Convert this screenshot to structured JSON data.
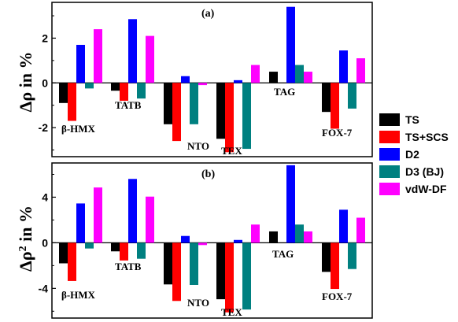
{
  "chart_data": {
    "type": "bar",
    "legend": {
      "position": "right"
    },
    "series_style": [
      {
        "name": "TS",
        "color": "#000000"
      },
      {
        "name": "TS+SCS",
        "color": "#ff0000"
      },
      {
        "name": "D2",
        "color": "#0000ff"
      },
      {
        "name": "D3 (BJ)",
        "color": "#008080"
      },
      {
        "name": "vdW-DF",
        "color": "#ff00ff"
      }
    ],
    "panels": [
      {
        "panel_label": "(a)",
        "ylabel": "Δρ in %",
        "ylim": [
          -3.3,
          3.6
        ],
        "yticks": [
          -2,
          0,
          2
        ],
        "categories": [
          "β-HMX",
          "TATB",
          "NTO",
          "TEX",
          "TAG",
          "FOX-7"
        ],
        "series": [
          {
            "name": "TS",
            "values": [
              -0.9,
              -0.35,
              -1.85,
              -2.5,
              0.5,
              -1.3
            ]
          },
          {
            "name": "TS+SCS",
            "values": [
              -1.7,
              -0.8,
              -2.6,
              -3.1,
              0.0,
              -2.05
            ]
          },
          {
            "name": "D2",
            "values": [
              1.7,
              2.85,
              0.3,
              0.12,
              3.4,
              1.45
            ]
          },
          {
            "name": "D3 (BJ)",
            "values": [
              -0.25,
              -0.7,
              -1.85,
              -2.95,
              0.8,
              -1.15
            ]
          },
          {
            "name": "vdW-DF",
            "values": [
              2.4,
              2.1,
              -0.1,
              0.8,
              0.5,
              1.1
            ]
          }
        ]
      },
      {
        "panel_label": "(b)",
        "ylabel": "Δρ² in %",
        "ylim": [
          -6.6,
          7.0
        ],
        "yticks": [
          -4,
          0,
          4
        ],
        "categories": [
          "β-HMX",
          "TATB",
          "NTO",
          "TEX",
          "TAG",
          "FOX-7"
        ],
        "series": [
          {
            "name": "TS",
            "values": [
              -1.8,
              -0.75,
              -3.65,
              -4.95,
              1.0,
              -2.55
            ]
          },
          {
            "name": "TS+SCS",
            "values": [
              -3.35,
              -1.55,
              -5.1,
              -6.1,
              0.0,
              -4.05
            ]
          },
          {
            "name": "D2",
            "values": [
              3.45,
              5.6,
              0.6,
              0.25,
              6.8,
              2.9
            ]
          },
          {
            "name": "D3 (BJ)",
            "values": [
              -0.5,
              -1.4,
              -3.7,
              -5.85,
              1.6,
              -2.3
            ]
          },
          {
            "name": "vdW-DF",
            "values": [
              4.85,
              4.05,
              -0.2,
              1.6,
              1.0,
              2.2
            ]
          }
        ]
      }
    ]
  }
}
